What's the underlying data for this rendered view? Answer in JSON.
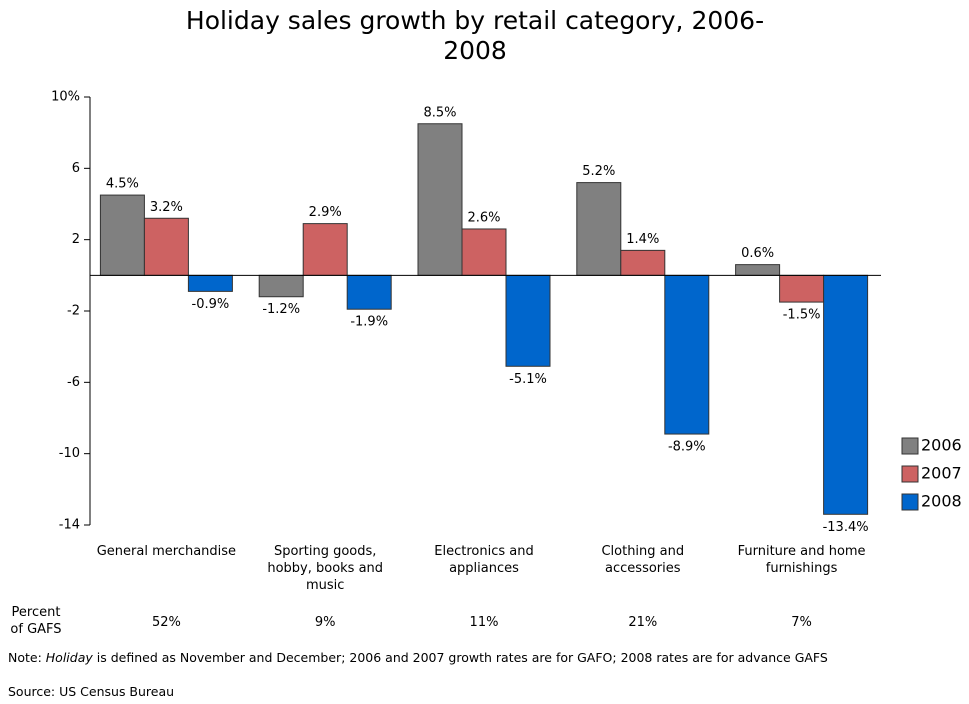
{
  "chart_data": {
    "type": "bar",
    "title": "Holiday sales growth by retail category, 2006-2008",
    "categories": [
      "General merchandise",
      "Sporting goods, hobby, books and music",
      "Electronics and appliances",
      "Clothing and accessories",
      "Furniture and home furnishings"
    ],
    "series": [
      {
        "name": "2006",
        "color": "#808080",
        "values": [
          4.5,
          -1.2,
          8.5,
          5.2,
          0.6
        ],
        "value_labels": [
          "4.5%",
          "-1.2%",
          "8.5%",
          "5.2%",
          "0.6%"
        ]
      },
      {
        "name": "2007",
        "color": "#cd6262",
        "values": [
          3.2,
          2.9,
          2.6,
          1.4,
          -1.5
        ],
        "value_labels": [
          "3.2%",
          "2.9%",
          "2.6%",
          "1.4%",
          "-1.5%"
        ]
      },
      {
        "name": "2008",
        "color": "#0066cc",
        "values": [
          -0.9,
          -1.9,
          -5.1,
          -8.9,
          -13.4
        ],
        "value_labels": [
          "-0.9%",
          "-1.9%",
          "-5.1%",
          "-8.9%",
          "-13.4%"
        ]
      }
    ],
    "ylim": [
      -14,
      10
    ],
    "yticks": [
      {
        "value": 10,
        "label": "10%"
      },
      6,
      2,
      -2,
      -6,
      -10,
      -14
    ],
    "legend": "right",
    "gafs": {
      "label": "Percent of GAFS",
      "values": [
        "52%",
        "9%",
        "11%",
        "21%",
        "7%"
      ]
    },
    "note": [
      "Note: ",
      "Holiday",
      " is defined as November and December; 2006 and 2007 growth rates are for GAFO; 2008 rates are for advance GAFS"
    ],
    "source": "Source: US Census Bureau"
  }
}
